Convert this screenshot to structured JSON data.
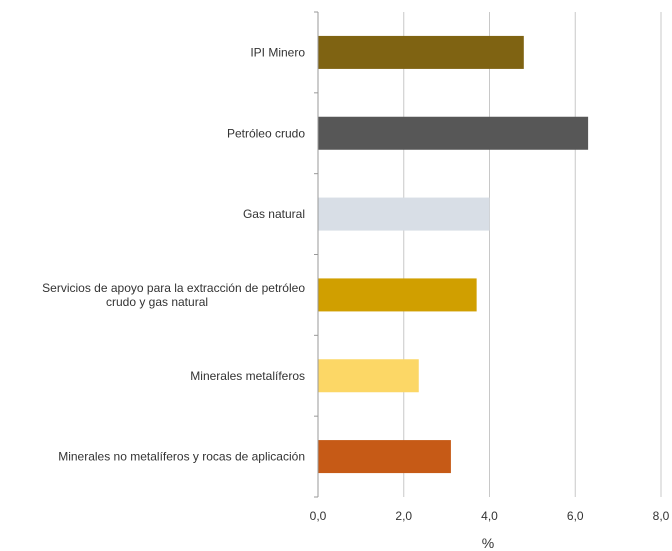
{
  "chart_data": {
    "type": "bar",
    "orientation": "horizontal",
    "categories": [
      [
        "IPI Minero"
      ],
      [
        "Petróleo crudo"
      ],
      [
        "Gas natural"
      ],
      [
        "Servicios de apoyo para la extracción de petróleo",
        "crudo y gas natural"
      ],
      [
        "Minerales metalíferos"
      ],
      [
        "Minerales no metalíferos y rocas de aplicación"
      ]
    ],
    "values": [
      4.8,
      6.3,
      4.0,
      3.7,
      2.35,
      3.1
    ],
    "colors": [
      "#7f6312",
      "#575757",
      "#d8dee6",
      "#d09f00",
      "#fcd766",
      "#c65a16"
    ],
    "xlim": [
      0,
      8
    ],
    "xticks": [
      "0,0",
      "2,0",
      "4,0",
      "6,0",
      "8,0"
    ],
    "xlabel": "%",
    "ylabel": "",
    "title": "",
    "grid": "vertical",
    "legend": "none"
  }
}
